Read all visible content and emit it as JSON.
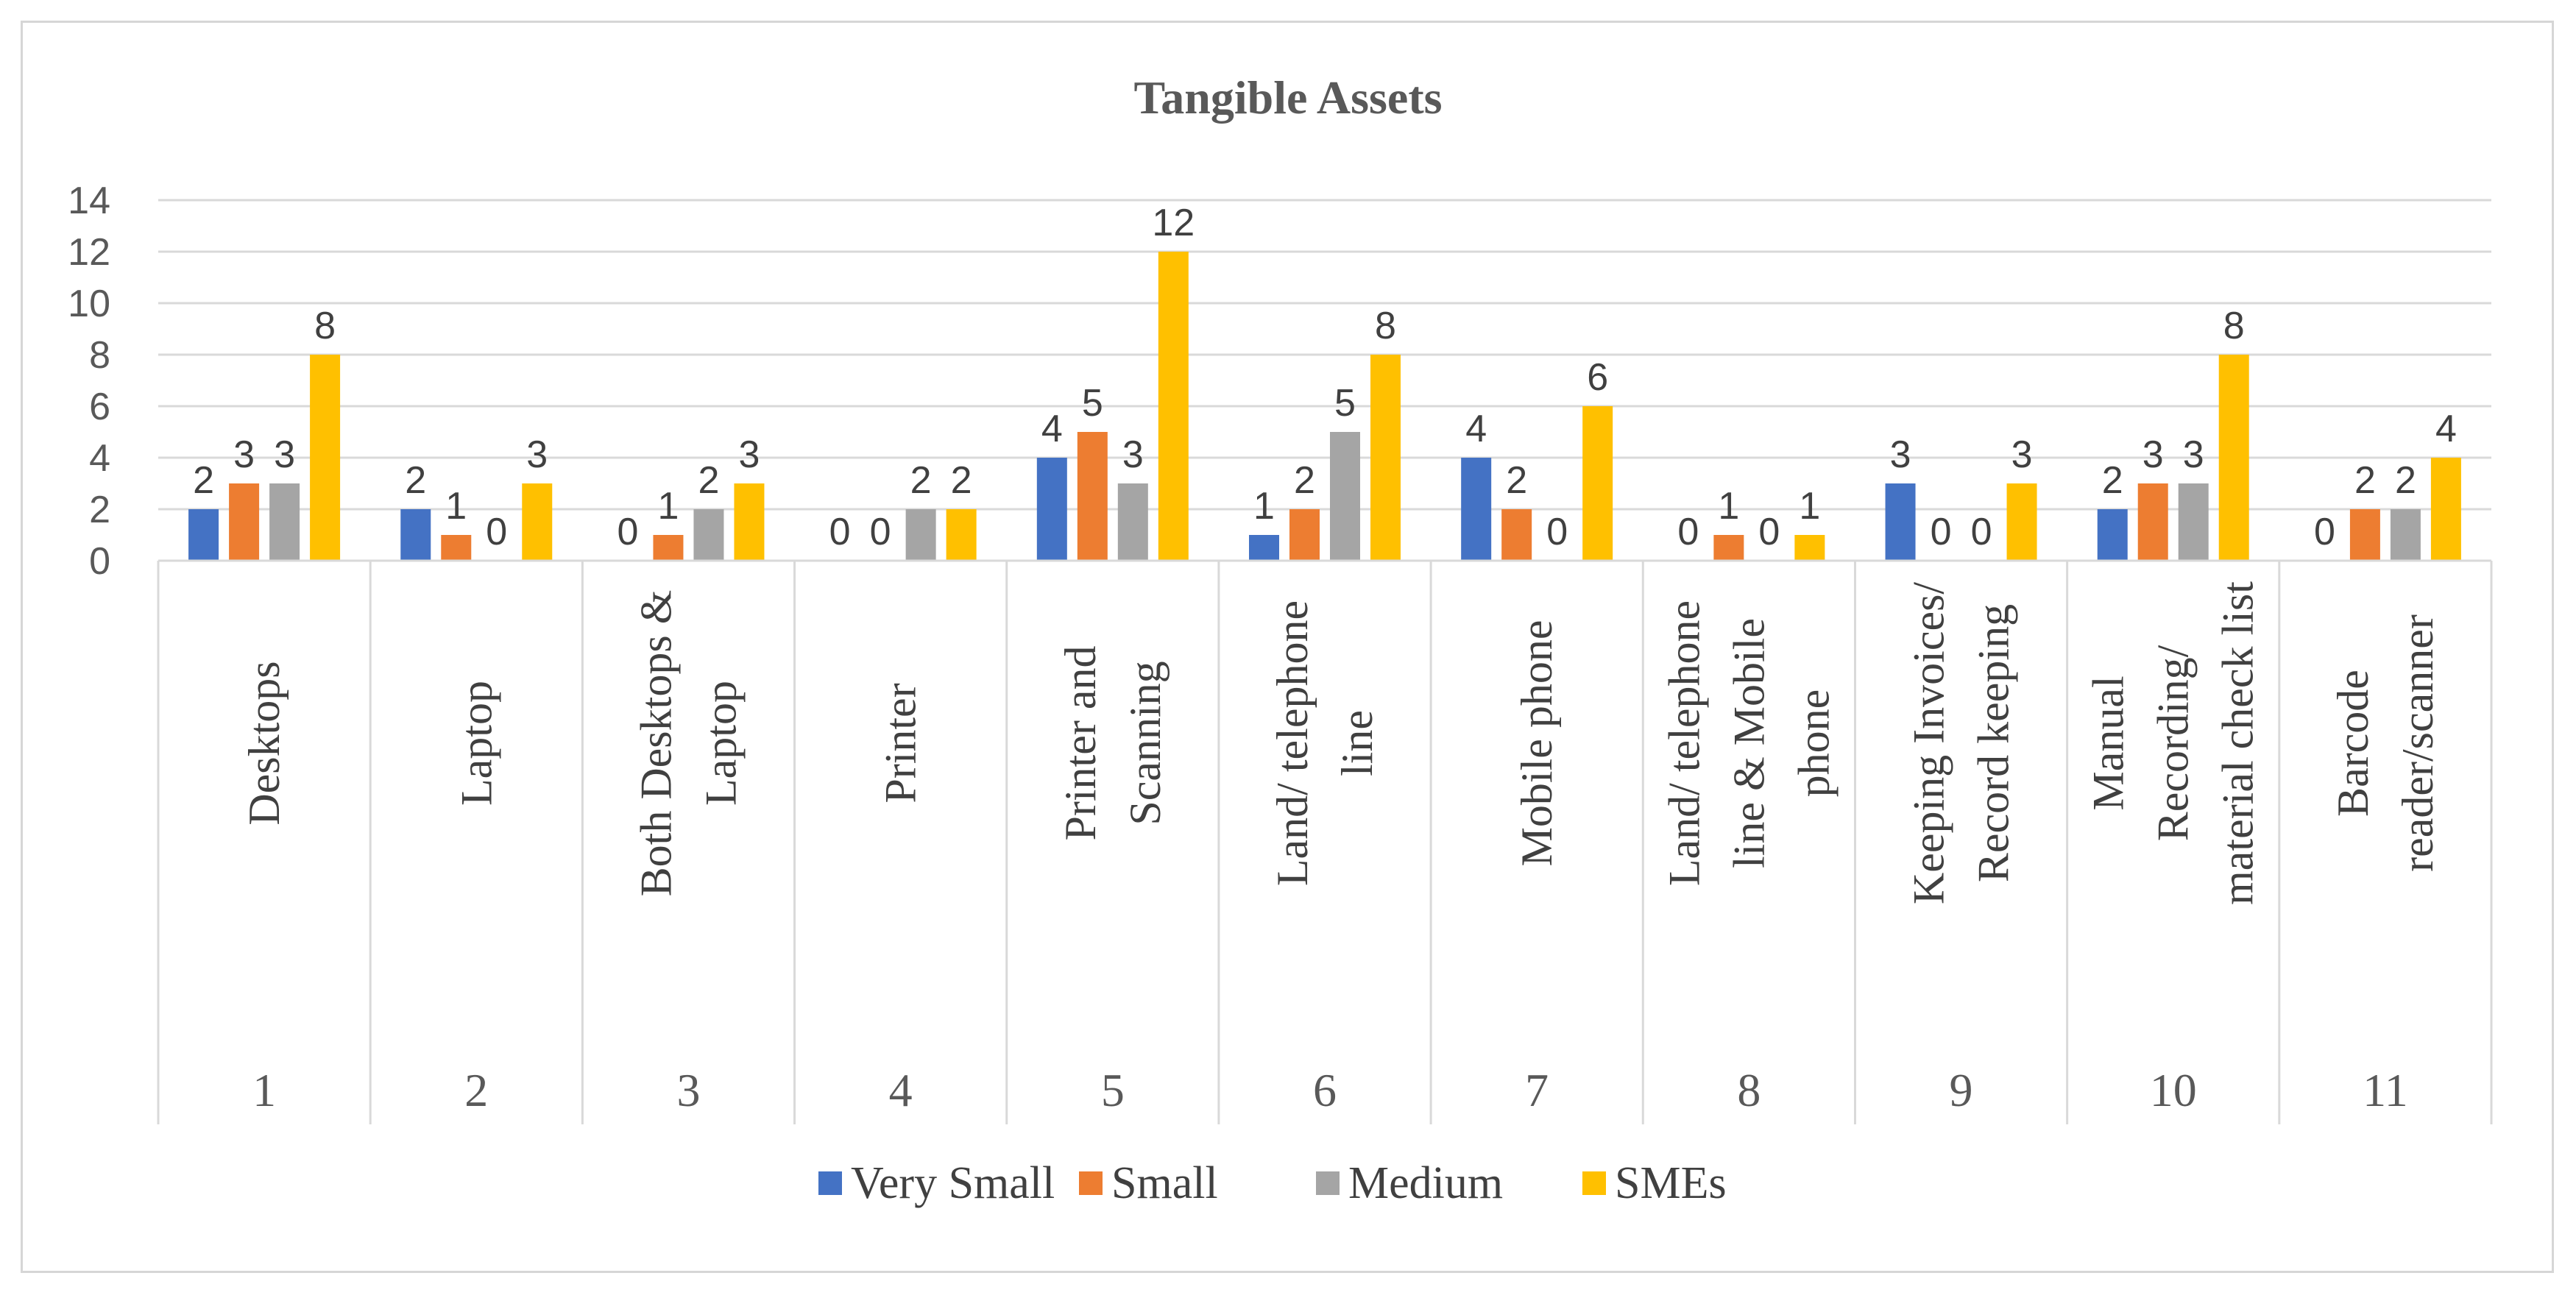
{
  "chart_data": {
    "type": "bar",
    "title": "Tangible Assets",
    "categories": [
      "1",
      "2",
      "3",
      "4",
      "5",
      "6",
      "7",
      "8",
      "9",
      "10",
      "11"
    ],
    "category_labels": [
      [
        "Desktops"
      ],
      [
        "Laptop"
      ],
      [
        "Both Desktops &",
        "Laptop"
      ],
      [
        "Printer"
      ],
      [
        "Printer and",
        "Scanning"
      ],
      [
        "Land/ telephone",
        "line"
      ],
      [
        "Mobile phone"
      ],
      [
        "Land/ telephone",
        "line & Mobile",
        "phone"
      ],
      [
        "Keeping Invoices/",
        "Record keeping"
      ],
      [
        "Manual",
        "Recording/",
        "material check list"
      ],
      [
        "Barcode",
        "reader/scanner"
      ]
    ],
    "series": [
      {
        "name": "Very Small",
        "color": "#4472C4",
        "values": [
          2,
          2,
          0,
          0,
          4,
          1,
          4,
          0,
          3,
          2,
          0
        ]
      },
      {
        "name": "Small",
        "color": "#ED7D31",
        "values": [
          3,
          1,
          1,
          0,
          5,
          2,
          2,
          1,
          0,
          3,
          2
        ]
      },
      {
        "name": "Medium",
        "color": "#A5A5A5",
        "values": [
          3,
          0,
          2,
          2,
          3,
          5,
          0,
          0,
          0,
          3,
          2
        ]
      },
      {
        "name": "SMEs",
        "color": "#FFC000",
        "values": [
          8,
          3,
          3,
          2,
          12,
          8,
          6,
          1,
          3,
          8,
          4
        ]
      }
    ],
    "ylim": [
      0,
      14
    ],
    "yticks": [
      0,
      2,
      4,
      6,
      8,
      10,
      12,
      14
    ],
    "xlabel": "",
    "ylabel": "",
    "legend_position": "bottom"
  }
}
